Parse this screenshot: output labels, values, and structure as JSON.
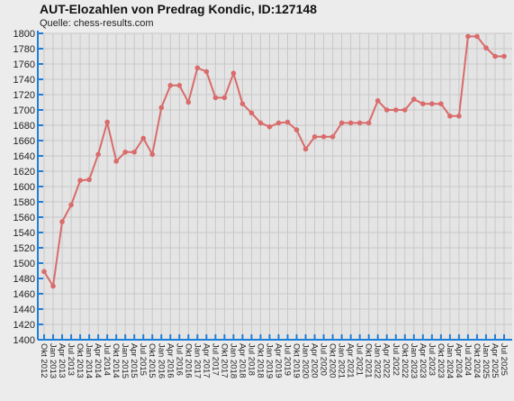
{
  "chart_data": {
    "type": "line",
    "title": "AUT-Elozahlen von Predrag Kondic, ID:127148",
    "subtitle": "Quelle: chess-results.com",
    "xlabel": "",
    "ylabel": "",
    "ylim": [
      1400,
      1800
    ],
    "ystep": 20,
    "grid": true,
    "categories": [
      "Okt 2012",
      "Jan 2013",
      "Apr 2013",
      "Jul 2013",
      "Okt 2013",
      "Jan 2014",
      "Apr 2014",
      "Jul 2014",
      "Okt 2014",
      "Jan 2015",
      "Apr 2015",
      "Jul 2015",
      "Okt 2015",
      "Jan 2016",
      "Apr 2016",
      "Jul 2016",
      "Okt 2016",
      "Jan 2017",
      "Apr 2017",
      "Jul 2017",
      "Okt 2017",
      "Jan 2018",
      "Apr 2018",
      "Jul 2018",
      "Okt 2018",
      "Jan 2019",
      "Apr 2019",
      "Jul 2019",
      "Okt 2019",
      "Jan 2020",
      "Apr 2020",
      "Jul 2020",
      "Okt 2020",
      "Jan 2021",
      "Apr 2021",
      "Jul 2021",
      "Okt 2021",
      "Jan 2022",
      "Apr 2022",
      "Jul 2022",
      "Okt 2022",
      "Jan 2023",
      "Apr 2023",
      "Jul 2023",
      "Okt 2023",
      "Jan 2024",
      "Apr 2024",
      "Jul 2024",
      "Okt 2024",
      "Jan 2025",
      "Apr 2025",
      "Jul 2025"
    ],
    "series": [
      {
        "values": [
          1489,
          1470,
          1554,
          1576,
          1608,
          1609,
          1642,
          1684,
          1633,
          1645,
          1645,
          1663,
          1642,
          1703,
          1732,
          1732,
          1710,
          1755,
          1750,
          1716,
          1716,
          1748,
          1708,
          1696,
          1683,
          1678,
          1683,
          1684,
          1674,
          1649,
          1665,
          1665,
          1665,
          1683,
          1683,
          1683,
          1683,
          1712,
          1700,
          1700,
          1700,
          1714,
          1708,
          1708,
          1708,
          1692,
          1692,
          1796,
          1796,
          1781,
          1770,
          1770
        ],
        "color": "#d96b6b"
      }
    ],
    "colors": {
      "background": "#ececec",
      "plot_background": "#e4e4e4",
      "grid": "#c8c8c8",
      "axis": "#1e7fd8",
      "line": "#d96b6b"
    }
  }
}
